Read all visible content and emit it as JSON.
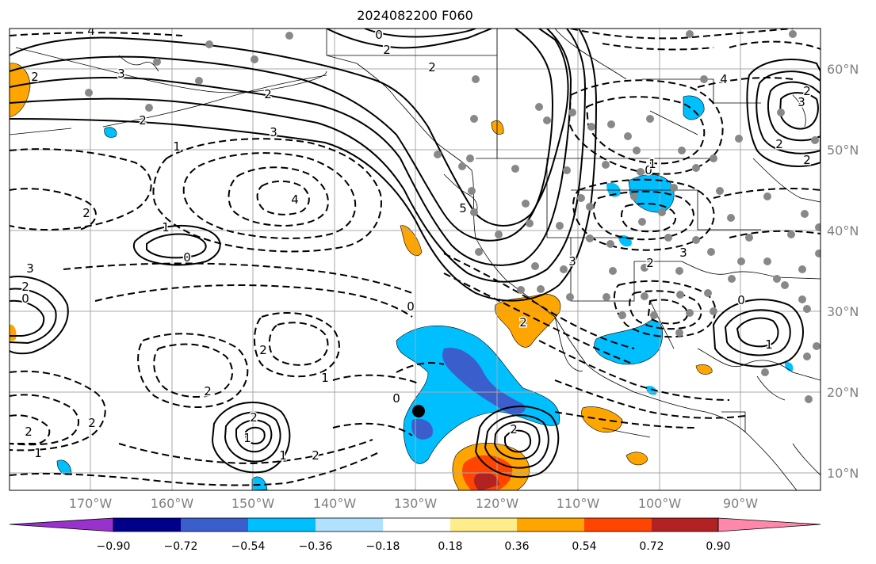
{
  "title": "2024082200 F060",
  "map": {
    "region": "Northeast Pacific / North America",
    "lat_labels": [
      "60°N",
      "50°N",
      "40°N",
      "30°N",
      "20°N",
      "10°N"
    ],
    "lon_labels": [
      "170°W",
      "160°W",
      "150°W",
      "140°W",
      "130°W",
      "120°W",
      "110°W",
      "100°W",
      "90°W"
    ],
    "contour_labels": [
      "2",
      "3",
      "4",
      "2",
      "2",
      "1",
      "0",
      "2",
      "2",
      "3",
      "4",
      "5",
      "1",
      "0",
      "2",
      "3",
      "2",
      "0",
      "2",
      "1",
      "2",
      "2",
      "1",
      "0",
      "2",
      "1",
      "2",
      "0",
      "3",
      "4",
      "3",
      "2",
      "2",
      "2",
      "1",
      "0",
      "1",
      "2",
      "3",
      "1",
      "2",
      "0",
      "2",
      "2"
    ],
    "marker_color": "#000000",
    "station_dot_color": "#888888"
  },
  "colorbar": {
    "ticks": [
      "−0.90",
      "−0.72",
      "−0.54",
      "−0.36",
      "−0.18",
      "0.18",
      "0.36",
      "0.54",
      "0.72",
      "0.90"
    ],
    "colors": [
      "#9932CC",
      "#00008B",
      "#3A5FCD",
      "#00BFFF",
      "#B0E2FF",
      "#FFFFFF",
      "#FFEC8B",
      "#FFA500",
      "#FF4500",
      "#B22222",
      "#FF88AA"
    ]
  }
}
